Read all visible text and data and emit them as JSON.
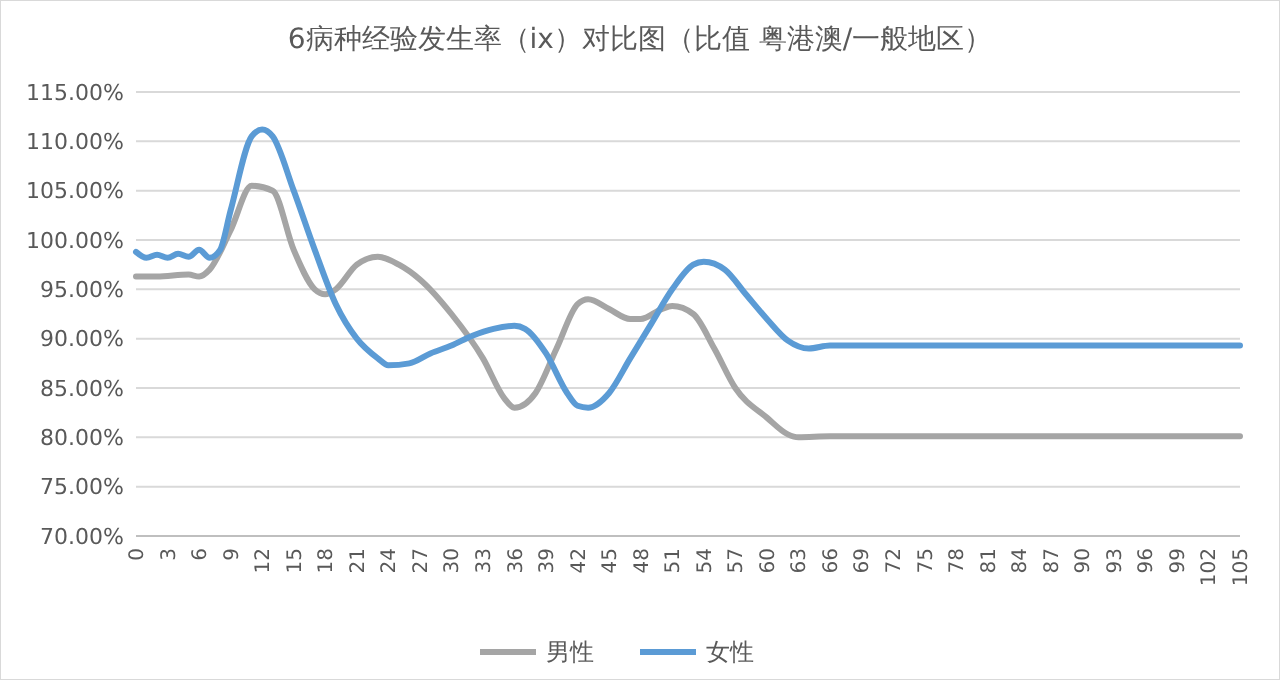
{
  "chart_data": {
    "type": "line",
    "title": "6病种经验发生率（ix）对比图（比值 粤港澳/一般地区）",
    "xlim": [
      0,
      105
    ],
    "xticks": [
      0,
      3,
      6,
      9,
      12,
      15,
      18,
      21,
      24,
      27,
      30,
      33,
      36,
      39,
      42,
      45,
      48,
      51,
      54,
      57,
      60,
      63,
      66,
      69,
      72,
      75,
      78,
      81,
      84,
      87,
      90,
      93,
      96,
      99,
      102,
      105
    ],
    "ylim": [
      70,
      115
    ],
    "yticks": [
      {
        "value": 70,
        "label": "70.00%"
      },
      {
        "value": 75,
        "label": "75.00%"
      },
      {
        "value": 80,
        "label": "80.00%"
      },
      {
        "value": 85,
        "label": "85.00%"
      },
      {
        "value": 90,
        "label": "90.00%"
      },
      {
        "value": 95,
        "label": "95.00%"
      },
      {
        "value": 100,
        "label": "100.00%"
      },
      {
        "value": 105,
        "label": "105.00%"
      },
      {
        "value": 110,
        "label": "110.00%"
      },
      {
        "value": 115,
        "label": "115.00%"
      }
    ],
    "grid": "y",
    "legend": "bottom",
    "marker": "none",
    "line_style": "solid",
    "series": [
      {
        "name": "男性",
        "color": "#a5a5a5",
        "x": [
          0,
          2,
          5,
          6,
          7,
          9,
          11,
          13,
          15,
          17,
          18,
          19,
          21,
          23,
          25,
          27,
          30,
          33,
          35,
          36,
          38,
          40,
          42,
          43,
          45,
          47,
          48,
          50,
          51,
          53,
          55,
          57,
          60,
          62,
          63,
          66,
          105
        ],
        "values": [
          96.3,
          96.3,
          96.5,
          96.3,
          97,
          101,
          105.5,
          105,
          99,
          95,
          94.5,
          95,
          97.5,
          98.3,
          97.5,
          96,
          92.5,
          88,
          84,
          83,
          84.5,
          89,
          93.5,
          94,
          93,
          92,
          92,
          93,
          93.3,
          92.5,
          89,
          85,
          82,
          80.3,
          80,
          80.1,
          80.1
        ]
      },
      {
        "name": "女性",
        "color": "#5b9bd5",
        "x": [
          0,
          1,
          2,
          3,
          4,
          5,
          6,
          7,
          8,
          9,
          11,
          12,
          13,
          15,
          17,
          19,
          21,
          23,
          24,
          26,
          28,
          30,
          32,
          34,
          36,
          37,
          39,
          41,
          42,
          43,
          45,
          47,
          49,
          51,
          53,
          54,
          56,
          58,
          60,
          62,
          64,
          66,
          105
        ],
        "values": [
          98.8,
          98.2,
          98.5,
          98.2,
          98.6,
          98.3,
          99,
          98.2,
          99,
          103,
          110.5,
          111.2,
          110.5,
          105,
          99,
          93.5,
          90,
          88,
          87.3,
          87.5,
          88.5,
          89.3,
          90.3,
          91,
          91.3,
          91,
          88.5,
          84.5,
          83.2,
          83,
          84.5,
          88,
          91.5,
          95,
          97.5,
          97.8,
          97,
          94.5,
          92,
          89.8,
          89,
          89.3,
          89.3
        ]
      }
    ]
  }
}
